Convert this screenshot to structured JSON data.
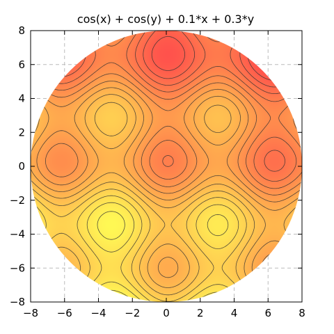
{
  "chart_data": {
    "type": "heatmap",
    "title": "cos(x) + cos(y) + 0.1*x + 0.3*y",
    "xlabel": "",
    "ylabel": "",
    "xlim": [
      -8,
      8
    ],
    "ylim": [
      -8,
      8
    ],
    "xticks": [
      -8,
      -6,
      -4,
      -2,
      0,
      2,
      4,
      6,
      8
    ],
    "yticks": [
      -8,
      -6,
      -4,
      -2,
      0,
      2,
      4,
      6,
      8
    ],
    "xtick_labels": [
      "−8",
      "−6",
      "−4",
      "−2",
      "0",
      "2",
      "4",
      "6",
      "8"
    ],
    "ytick_labels": [
      "−8",
      "−6",
      "−4",
      "−2",
      "0",
      "2",
      "4",
      "6",
      "8"
    ],
    "function": {
      "cos_x_coef": 1,
      "cos_y_coef": 1,
      "x_coef": 0.1,
      "y_coef": 0.3
    },
    "domain": {
      "shape": "disk",
      "center": [
        0,
        0
      ],
      "radius": 8
    },
    "contour_levels": [
      -3.5,
      -3.0,
      -2.5,
      -2.0,
      -1.5,
      -1.0,
      -0.5,
      0.0,
      0.5,
      1.0,
      1.5,
      2.0,
      2.5,
      3.0,
      3.5,
      4.0
    ],
    "value_range": [
      -3.6,
      4.2
    ],
    "colormap": {
      "low": "#ffff55",
      "mid": "#ffa84e",
      "high": "#ff4c4c"
    },
    "grid": true,
    "grid_color": "#bbbbbb",
    "contour_line_color": "#333333"
  }
}
